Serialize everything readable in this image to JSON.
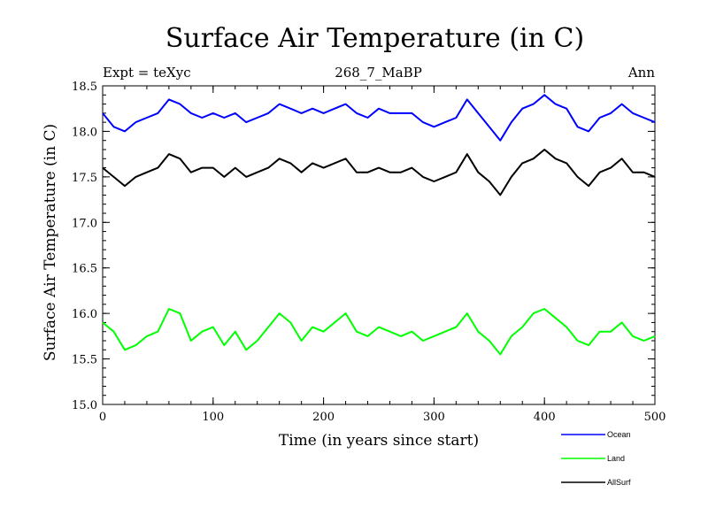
{
  "chart_data": {
    "type": "line",
    "title": "Surface Air Temperature (in C)",
    "subtitle": "268_7_MaBP",
    "left_note": "Expt = teXyc",
    "right_note": "Ann",
    "xlabel": "Time (in years since start)",
    "ylabel": "Surface Air Temperature (in C)",
    "xlim": [
      0,
      500
    ],
    "ylim": [
      15.0,
      18.5
    ],
    "x_ticks": [
      "0",
      "100",
      "200",
      "300",
      "400",
      "500"
    ],
    "y_ticks": [
      "15.0",
      "15.5",
      "16.0",
      "16.5",
      "17.0",
      "17.5",
      "18.0",
      "18.5"
    ],
    "grid": false,
    "legend_position": "bottom-right",
    "x": [
      0,
      10,
      20,
      30,
      40,
      50,
      60,
      70,
      80,
      90,
      100,
      110,
      120,
      130,
      140,
      150,
      160,
      170,
      180,
      190,
      200,
      210,
      220,
      230,
      240,
      250,
      260,
      270,
      280,
      290,
      300,
      310,
      320,
      330,
      340,
      350,
      360,
      370,
      380,
      390,
      400,
      410,
      420,
      430,
      440,
      450,
      460,
      470,
      480,
      490,
      500
    ],
    "series": [
      {
        "name": "Ocean",
        "color": "#0000ff",
        "values": [
          18.2,
          18.05,
          18.0,
          18.1,
          18.15,
          18.2,
          18.35,
          18.3,
          18.2,
          18.15,
          18.2,
          18.15,
          18.2,
          18.1,
          18.15,
          18.2,
          18.3,
          18.25,
          18.2,
          18.25,
          18.2,
          18.25,
          18.3,
          18.2,
          18.15,
          18.25,
          18.2,
          18.2,
          18.2,
          18.1,
          18.05,
          18.1,
          18.15,
          18.35,
          18.2,
          18.05,
          17.9,
          18.1,
          18.25,
          18.3,
          18.4,
          18.3,
          18.25,
          18.05,
          18.0,
          18.15,
          18.2,
          18.3,
          18.2,
          18.15,
          18.1
        ]
      },
      {
        "name": "Land",
        "color": "#00ff00",
        "values": [
          15.9,
          15.8,
          15.6,
          15.65,
          15.75,
          15.8,
          16.05,
          16.0,
          15.7,
          15.8,
          15.85,
          15.65,
          15.8,
          15.6,
          15.7,
          15.85,
          16.0,
          15.9,
          15.7,
          15.85,
          15.8,
          15.9,
          16.0,
          15.8,
          15.75,
          15.85,
          15.8,
          15.75,
          15.8,
          15.7,
          15.75,
          15.8,
          15.85,
          16.0,
          15.8,
          15.7,
          15.55,
          15.75,
          15.85,
          16.0,
          16.05,
          15.95,
          15.85,
          15.7,
          15.65,
          15.8,
          15.8,
          15.9,
          15.75,
          15.7,
          15.75
        ]
      },
      {
        "name": "AllSurf",
        "color": "#000000",
        "values": [
          17.6,
          17.5,
          17.4,
          17.5,
          17.55,
          17.6,
          17.75,
          17.7,
          17.55,
          17.6,
          17.6,
          17.5,
          17.6,
          17.5,
          17.55,
          17.6,
          17.7,
          17.65,
          17.55,
          17.65,
          17.6,
          17.65,
          17.7,
          17.55,
          17.55,
          17.6,
          17.55,
          17.55,
          17.6,
          17.5,
          17.45,
          17.5,
          17.55,
          17.75,
          17.55,
          17.45,
          17.3,
          17.5,
          17.65,
          17.7,
          17.8,
          17.7,
          17.65,
          17.5,
          17.4,
          17.55,
          17.6,
          17.7,
          17.55,
          17.55,
          17.5
        ]
      }
    ]
  }
}
